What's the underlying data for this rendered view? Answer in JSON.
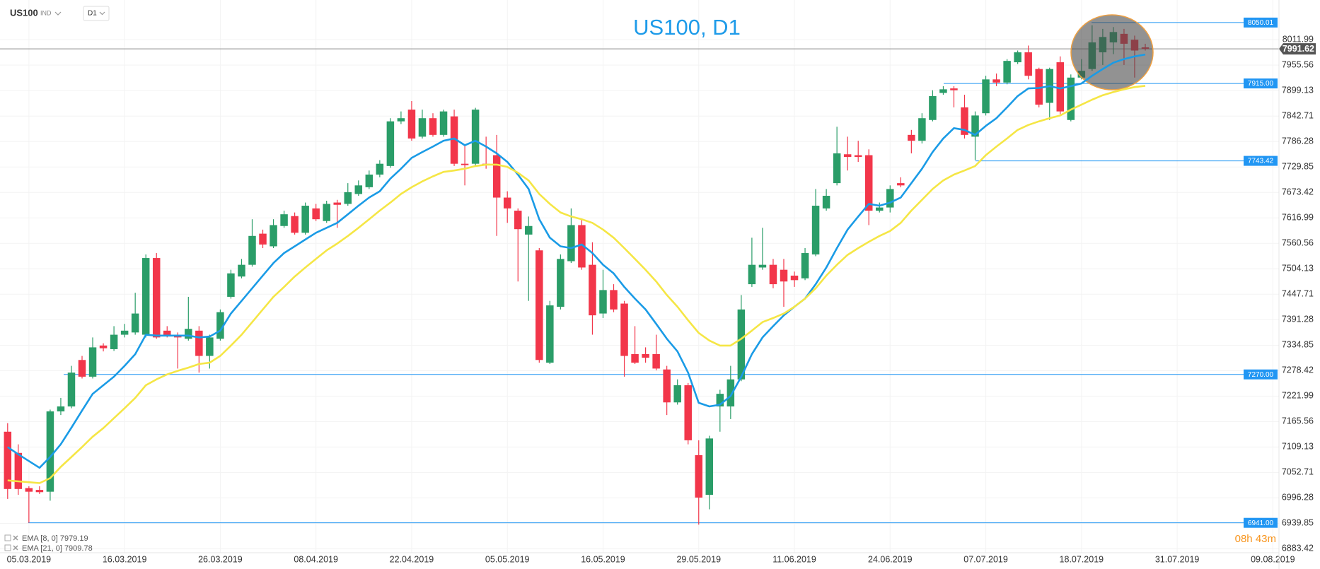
{
  "header": {
    "symbol": "US100",
    "market": "IND",
    "timeframe": "D1"
  },
  "timer": "08h 43m",
  "chart_data": {
    "type": "candlestick",
    "title": "US100, D1",
    "categories": [
      null,
      null,
      "05.03.2019",
      null,
      null,
      null,
      null,
      null,
      null,
      null,
      null,
      "16.03.2019",
      null,
      null,
      null,
      null,
      null,
      null,
      null,
      null,
      "26.03.2019",
      null,
      null,
      null,
      null,
      null,
      null,
      null,
      null,
      "08.04.2019",
      null,
      null,
      null,
      null,
      null,
      null,
      null,
      null,
      "22.04.2019",
      null,
      null,
      null,
      null,
      null,
      null,
      null,
      null,
      "05.05.2019",
      null,
      null,
      null,
      null,
      null,
      null,
      null,
      null,
      "16.05.2019",
      null,
      null,
      null,
      null,
      null,
      null,
      null,
      null,
      "29.05.2019",
      null,
      null,
      null,
      null,
      null,
      null,
      null,
      null,
      "11.06.2019",
      null,
      null,
      null,
      null,
      null,
      null,
      null,
      null,
      "24.06.2019",
      null,
      null,
      null,
      null,
      null,
      null,
      null,
      null,
      "07.07.2019",
      null,
      null,
      null,
      null,
      null,
      null,
      null,
      null,
      "18.07.2019",
      null,
      null,
      null,
      null,
      null,
      null,
      null,
      null,
      "31.07.2019",
      null,
      null,
      null,
      null,
      null,
      null,
      null,
      null,
      "09.08.2019"
    ],
    "series": [
      {
        "name": "US100",
        "up_color": "#2a9d68",
        "down_color": "#f2364a",
        "open": [
          7143,
          7096,
          7018,
          7014,
          7010,
          7188,
          7199,
          7302,
          7265,
          7334,
          7326,
          7358,
          7363,
          7358,
          7528,
          7367,
          7358,
          7349,
          7367,
          7311,
          7349,
          7442,
          7487,
          7513,
          7582,
          7554,
          7599,
          7621,
          7584,
          7638,
          7610,
          7651,
          7648,
          7670,
          7685,
          7713,
          7732,
          7831,
          7857,
          7797,
          7838,
          7801,
          7842,
          7737,
          7737,
          7737,
          7756,
          7662,
          7633,
          7580,
          7545,
          7296,
          7420,
          7521,
          7601,
          7513,
          7405,
          7457,
          7427,
          7315,
          7315,
          7315,
          7281,
          7208,
          7246,
          7091,
          7003,
          7199,
          7199,
          7259,
          7470,
          7507,
          7513,
          7502,
          7489,
          7483,
          7536,
          7638,
          7694,
          7758,
          7756,
          7756,
          7633,
          7640,
          7694,
          7801,
          7788,
          7834,
          7894,
          7904,
          7862,
          7797,
          7849,
          7924,
          7917,
          7962,
          7984,
          7947,
          7872,
          7962,
          7834,
          7928,
          7947,
          7984,
          8006,
          8025,
          8012,
          7995,
          null,
          null,
          null,
          null,
          null,
          null,
          null,
          null,
          null,
          null,
          null,
          null
        ],
        "high": [
          7162,
          7115,
          7022,
          7022,
          7192,
          7218,
          7289,
          7311,
          7352,
          7339,
          7377,
          7382,
          7451,
          7536,
          7539,
          7377,
          7363,
          7442,
          7377,
          7358,
          7414,
          7502,
          7526,
          7614,
          7591,
          7614,
          7633,
          7629,
          7651,
          7648,
          7655,
          7657,
          7694,
          7700,
          7722,
          7745,
          7838,
          7853,
          7876,
          7857,
          7849,
          7857,
          7857,
          7778,
          7861,
          7797,
          7801,
          7676,
          7638,
          7620,
          7550,
          7433,
          7536,
          7638,
          7614,
          7563,
          7502,
          7470,
          7433,
          7377,
          7330,
          7358,
          7289,
          7259,
          7251,
          7124,
          7134,
          7236,
          7289,
          7446,
          7573,
          7595,
          7526,
          7526,
          7498,
          7550,
          7681,
          7681,
          7819,
          7797,
          7788,
          7769,
          7651,
          7689,
          7707,
          7812,
          7849,
          7900,
          7909,
          7909,
          7890,
          7853,
          7932,
          7937,
          7969,
          7988,
          7999,
          7950,
          7950,
          7975,
          7935,
          7969,
          8044,
          8036,
          8040,
          8036,
          8021,
          8003,
          null,
          null,
          null,
          null,
          null,
          null,
          null,
          null,
          null,
          null,
          null,
          null
        ],
        "low": [
          6994,
          7003,
          6941,
          7005,
          6990,
          7180,
          7195,
          7261,
          7261,
          7321,
          7322,
          7352,
          7358,
          7352,
          7349,
          7352,
          7283,
          7345,
          7274,
          7283,
          7345,
          7438,
          7483,
          7509,
          7550,
          7550,
          7595,
          7580,
          7580,
          7610,
          7606,
          7595,
          7644,
          7666,
          7681,
          7707,
          7728,
          7825,
          7788,
          7793,
          7797,
          7797,
          7732,
          7689,
          7732,
          7726,
          7577,
          7606,
          7476,
          7433,
          7296,
          7293,
          7414,
          7517,
          7502,
          7358,
          7395,
          7408,
          7265,
          7293,
          7296,
          7279,
          7180,
          7203,
          7115,
          6937,
          6971,
          7143,
          7171,
          7255,
          7464,
          7502,
          7461,
          7420,
          7464,
          7479,
          7532,
          7633,
          7689,
          7722,
          7741,
          7601,
          7629,
          7629,
          7685,
          7760,
          7782,
          7831,
          7890,
          7862,
          7793,
          7745,
          7844,
          7909,
          7913,
          7958,
          7924,
          7862,
          7834,
          7847,
          7831,
          7924,
          7943,
          7956,
          7980,
          7956,
          7928,
          7988,
          null,
          null,
          null,
          null,
          null,
          null,
          null,
          null,
          null,
          null,
          null,
          null
        ],
        "close": [
          7016,
          7016,
          7010,
          7009,
          7188,
          7199,
          7274,
          7265,
          7330,
          7328,
          7358,
          7367,
          7405,
          7528,
          7352,
          7358,
          7352,
          7371,
          7311,
          7352,
          7408,
          7494,
          7513,
          7577,
          7558,
          7601,
          7625,
          7584,
          7644,
          7614,
          7648,
          7646,
          7674,
          7689,
          7713,
          7737,
          7831,
          7838,
          7793,
          7838,
          7801,
          7853,
          7737,
          7734,
          7857,
          7734,
          7662,
          7638,
          7592,
          7599,
          7302,
          7423,
          7526,
          7601,
          7507,
          7401,
          7457,
          7414,
          7311,
          7296,
          7307,
          7283,
          7208,
          7246,
          7124,
          6997,
          7128,
          7227,
          7259,
          7414,
          7513,
          7513,
          7470,
          7476,
          7479,
          7539,
          7644,
          7666,
          7760,
          7752,
          7752,
          7633,
          7640,
          7681,
          7689,
          7788,
          7838,
          7887,
          7902,
          7900,
          7801,
          7844,
          7924,
          7917,
          7965,
          7984,
          7932,
          7868,
          7947,
          7853,
          7928,
          7943,
          8006,
          8018,
          8029,
          8003,
          7988,
          7991.62,
          null,
          null,
          null,
          null,
          null,
          null,
          null,
          null,
          null,
          null,
          null,
          null
        ]
      }
    ],
    "indicators": [
      {
        "name": "EMA",
        "params": "[8, 0]",
        "color": "#1a9be6",
        "values": [
          7109,
          7093,
          7078,
          7063,
          7087,
          7115,
          7152,
          7190,
          7227,
          7246,
          7265,
          7289,
          7315,
          7358,
          7356,
          7356,
          7356,
          7356,
          7352,
          7354,
          7367,
          7405,
          7433,
          7461,
          7489,
          7517,
          7539,
          7554,
          7569,
          7584,
          7595,
          7606,
          7625,
          7644,
          7662,
          7676,
          7704,
          7726,
          7750,
          7763,
          7775,
          7788,
          7793,
          7778,
          7788,
          7775,
          7760,
          7741,
          7713,
          7681,
          7614,
          7573,
          7554,
          7550,
          7558,
          7539,
          7513,
          7494,
          7464,
          7438,
          7414,
          7382,
          7349,
          7321,
          7274,
          7207,
          7199,
          7203,
          7222,
          7265,
          7315,
          7352,
          7377,
          7401,
          7420,
          7438,
          7470,
          7507,
          7550,
          7591,
          7620,
          7648,
          7644,
          7651,
          7662,
          7694,
          7726,
          7763,
          7793,
          7816,
          7812,
          7801,
          7821,
          7838,
          7862,
          7887,
          7904,
          7905,
          7909,
          7904,
          7909,
          7915,
          7932,
          7947,
          7961,
          7969,
          7975,
          7979.19,
          null,
          null,
          null,
          null,
          null,
          null,
          null,
          null,
          null,
          null,
          null,
          null
        ]
      },
      {
        "name": "EMA",
        "params": "[21, 0]",
        "color": "#f5e645",
        "values": [
          7035,
          7033,
          7031,
          7029,
          7040,
          7065,
          7087,
          7109,
          7132,
          7151,
          7173,
          7195,
          7218,
          7246,
          7259,
          7270,
          7278,
          7285,
          7293,
          7296,
          7311,
          7334,
          7358,
          7386,
          7414,
          7442,
          7464,
          7487,
          7507,
          7526,
          7545,
          7560,
          7577,
          7595,
          7614,
          7633,
          7651,
          7670,
          7685,
          7698,
          7709,
          7719,
          7722,
          7726,
          7732,
          7735,
          7735,
          7730,
          7717,
          7700,
          7670,
          7648,
          7629,
          7620,
          7614,
          7606,
          7591,
          7573,
          7550,
          7526,
          7502,
          7476,
          7446,
          7420,
          7390,
          7362,
          7345,
          7334,
          7334,
          7349,
          7367,
          7386,
          7395,
          7405,
          7420,
          7438,
          7461,
          7489,
          7513,
          7535,
          7550,
          7564,
          7577,
          7588,
          7606,
          7633,
          7657,
          7681,
          7700,
          7713,
          7722,
          7732,
          7756,
          7775,
          7793,
          7812,
          7823,
          7831,
          7838,
          7844,
          7857,
          7868,
          7879,
          7889,
          7896,
          7902,
          7907,
          7909.78,
          null,
          null,
          null,
          null,
          null,
          null,
          null,
          null,
          null,
          null,
          null,
          null
        ]
      }
    ],
    "levels": [
      8050.01,
      7915.0,
      7743.42,
      7270.0,
      6941.0
    ],
    "level_color": "#2196f3",
    "ylim": [
      6870,
      8100
    ],
    "yticks": [
      8011.99,
      7955.56,
      7899.13,
      7842.71,
      7786.28,
      7729.85,
      7673.42,
      7616.99,
      7560.56,
      7504.13,
      7447.71,
      7391.28,
      7334.85,
      7278.42,
      7221.99,
      7165.56,
      7109.13,
      7052.71,
      6996.28,
      6939.85,
      6883.42
    ],
    "grid": true
  }
}
